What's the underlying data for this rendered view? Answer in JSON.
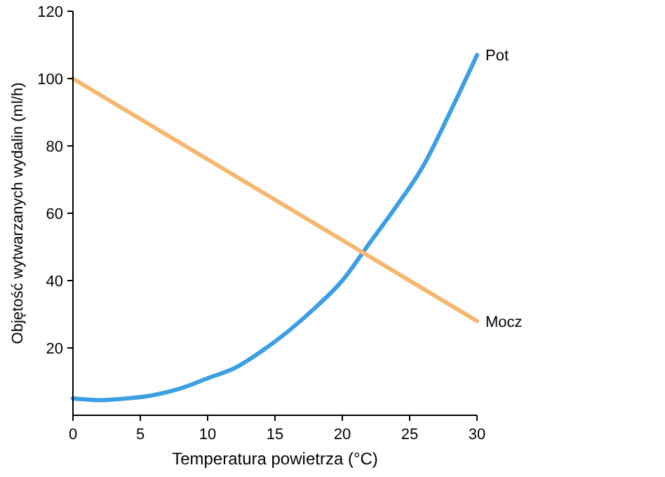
{
  "chart_data": {
    "type": "line",
    "xlabel": "Temperatura powietrza (°C)",
    "ylabel": "Objętość wytwarzanych wydalin (ml/h)",
    "xlim": [
      0,
      30
    ],
    "ylim": [
      0,
      120
    ],
    "xticks": [
      0,
      5,
      10,
      15,
      20,
      25,
      30
    ],
    "yticks": [
      20,
      40,
      60,
      80,
      100,
      120
    ],
    "grid": false,
    "legend": false,
    "marker": "none",
    "line_style": "solid",
    "series": [
      {
        "name": "Pot",
        "color": "#3d9fe3",
        "x": [
          0,
          2,
          4,
          6,
          8,
          10,
          12,
          14,
          16,
          18,
          20,
          22,
          24,
          26,
          28,
          30
        ],
        "values": [
          5,
          4.5,
          5,
          6,
          8,
          11,
          14,
          19,
          25,
          32,
          40,
          51,
          62,
          74,
          90,
          107
        ]
      },
      {
        "name": "Mocz",
        "color": "#f6b870",
        "x": [
          0,
          30
        ],
        "values": [
          100,
          28
        ]
      }
    ]
  }
}
